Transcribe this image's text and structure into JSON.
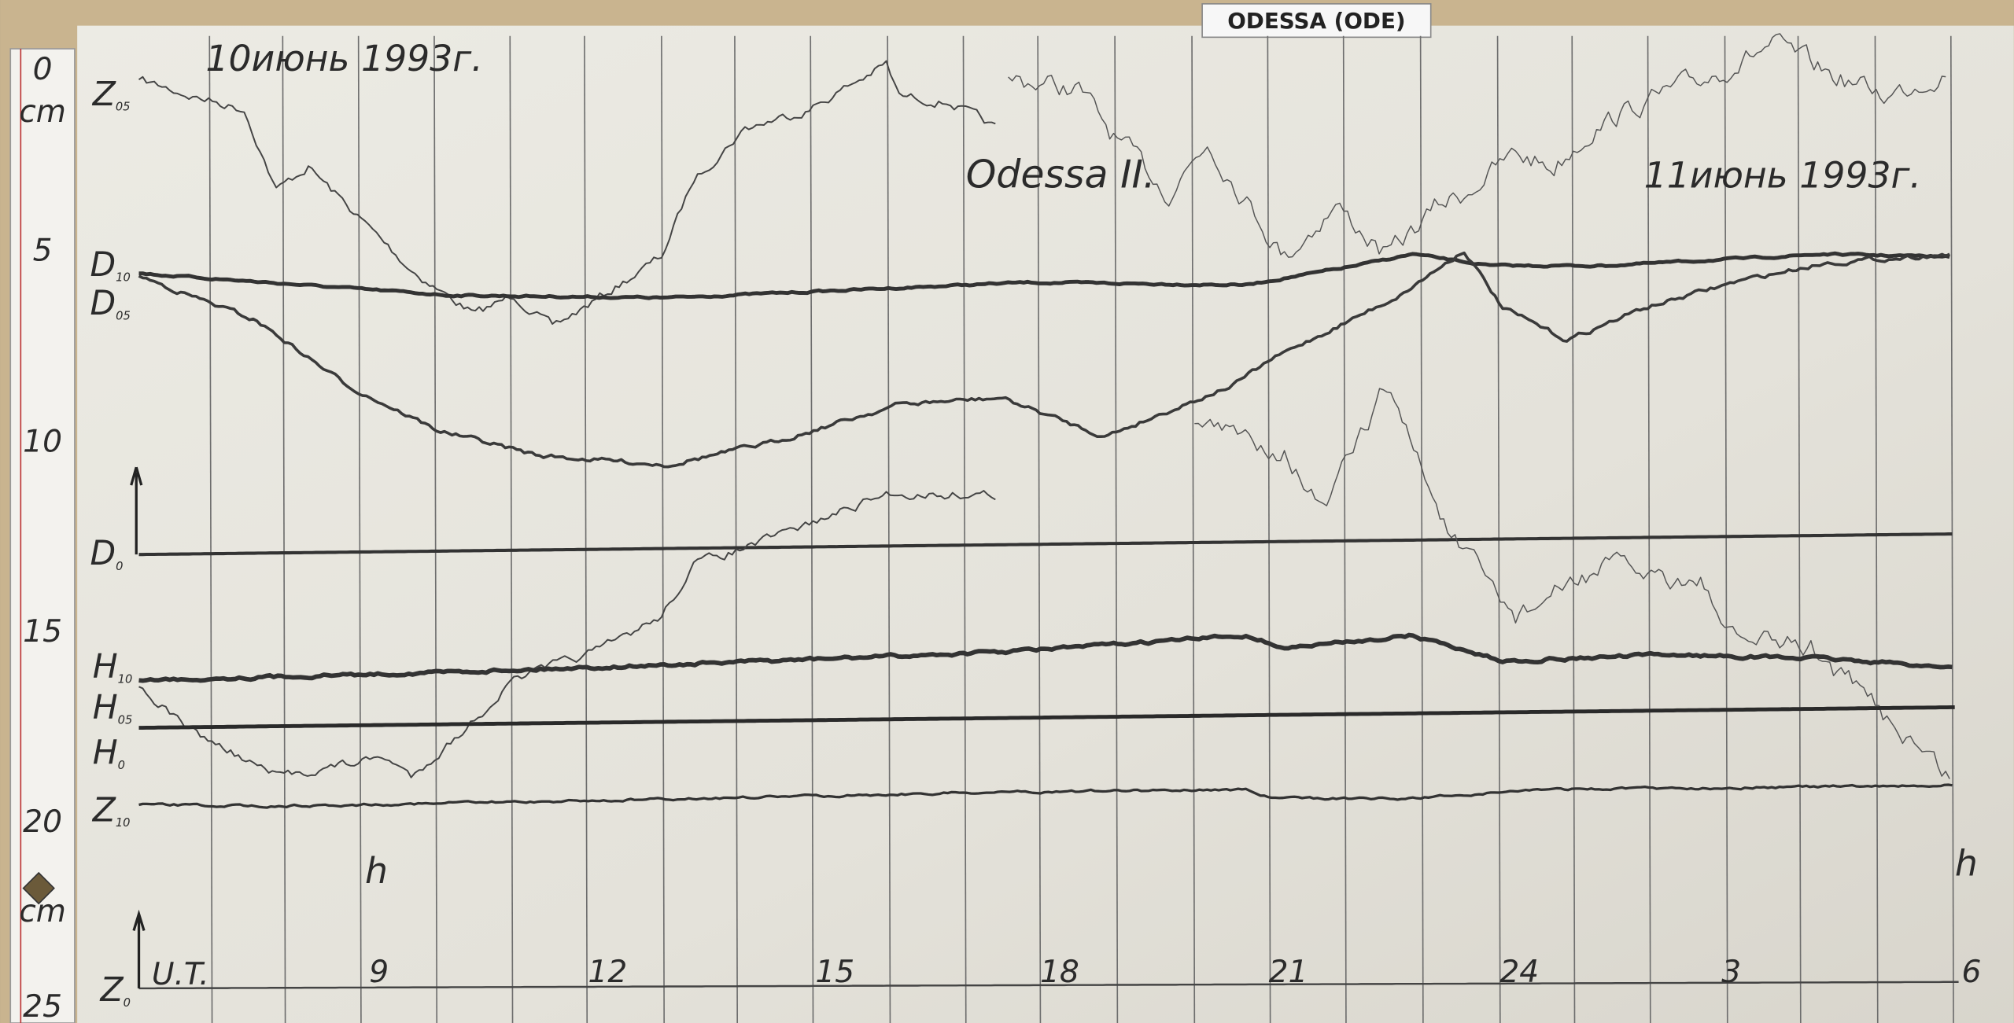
{
  "header": {
    "label": "ODESSA (ODE)"
  },
  "annotations": {
    "date_start": "10июнь 1993г.",
    "station": "Odessa II.",
    "date_end": "11июнь 1993г."
  },
  "ruler": {
    "labels": [
      "0",
      "cm",
      "5",
      "10",
      "15",
      "20",
      "cm",
      "25"
    ]
  },
  "trace_labels": [
    {
      "letter": "Z",
      "sub": "05"
    },
    {
      "letter": "D",
      "sub": "10"
    },
    {
      "letter": "D",
      "sub": "05"
    },
    {
      "letter": "D",
      "sub": "0"
    },
    {
      "letter": "H",
      "sub": "10"
    },
    {
      "letter": "H",
      "sub": "05"
    },
    {
      "letter": "H",
      "sub": "0"
    },
    {
      "letter": "Z",
      "sub": "10"
    },
    {
      "letter": "Z",
      "sub": "0"
    }
  ],
  "time_axis": {
    "unit_label": "U.T.",
    "ticks": [
      "9",
      "12",
      "15",
      "18",
      "21",
      "24",
      "3",
      "6"
    ],
    "hour_marks": [
      "h",
      "h"
    ]
  }
}
